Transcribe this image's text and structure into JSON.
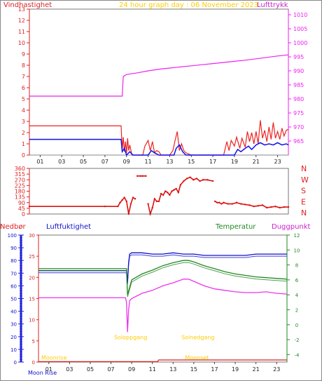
{
  "header": {
    "left_label": "Vindhastighet",
    "title": "24 hour graph day : 06 November 2023",
    "right_label": "Lufttrykk"
  },
  "colors": {
    "wind": "#ee2222",
    "gust": "#ee2222",
    "avg": "#1111ee",
    "pressure": "#ee22ee",
    "direction": "#dd1111",
    "humidity": "#1111cc",
    "temperature": "#228822",
    "dewpoint": "#ee33ee",
    "rain": "#dd2222",
    "sun": "#ffcc00",
    "axis_left": "#dd2222",
    "axis_right": "#ee22ee"
  },
  "chart_data": [
    {
      "type": "line",
      "name_key": "wind-pressure",
      "x_ticks": [
        "01",
        "03",
        "05",
        "07",
        "09",
        "11",
        "13",
        "15",
        "17",
        "19",
        "21",
        "23"
      ],
      "xlim": [
        0,
        24
      ],
      "left_axis": {
        "ylim": [
          0,
          13
        ],
        "ticks": [
          "0",
          "1",
          "2",
          "3",
          "4",
          "5",
          "6",
          "7",
          "8",
          "9",
          "10",
          "11",
          "12",
          "13"
        ]
      },
      "right_axis": {
        "ylim": [
          960,
          1012
        ],
        "ticks": [
          "965",
          "970",
          "975",
          "980",
          "985",
          "990",
          "995",
          "1000",
          "1005",
          "1010"
        ]
      },
      "series": [
        {
          "role": "pressure",
          "axis": "right",
          "x": [
            0,
            8.6,
            8.7,
            9,
            10,
            11,
            12,
            13,
            14,
            15,
            16,
            17,
            18,
            19,
            20,
            21,
            22,
            23,
            24
          ],
          "y": [
            981,
            981,
            988,
            988.7,
            989.3,
            990,
            990.6,
            991,
            991.4,
            991.8,
            992.2,
            992.6,
            993,
            993.4,
            993.8,
            994.3,
            994.8,
            995.3,
            995.7
          ]
        },
        {
          "role": "gust",
          "axis": "left",
          "x": [
            0,
            8.5,
            8.6,
            8.7,
            8.8,
            8.9,
            9.0,
            9.1,
            9.2,
            9.3,
            9.5,
            9.7,
            10,
            10.3,
            10.5,
            10.7,
            11,
            11.2,
            11.4,
            11.6,
            11.8,
            12.0,
            12.2,
            12.5,
            13,
            13.3,
            13.5,
            13.7,
            13.9,
            14.1,
            14.3,
            14.5,
            15,
            15.5,
            16,
            16.5,
            17,
            17.5,
            18,
            18.3,
            18.5,
            18.7,
            19,
            19.2,
            19.5,
            19.7,
            20,
            20.2,
            20.4,
            20.6,
            20.8,
            21,
            21.2,
            21.4,
            21.6,
            21.8,
            22,
            22.2,
            22.4,
            22.6,
            22.8,
            23,
            23.2,
            23.4,
            23.6,
            23.8,
            24
          ],
          "y": [
            2.6,
            2.6,
            0.5,
            1.6,
            0.3,
            1.2,
            0.2,
            1.5,
            0.4,
            0.9,
            0,
            0,
            0,
            0,
            0,
            0.8,
            1.3,
            0.4,
            1.2,
            0.2,
            0.4,
            0.3,
            0,
            0,
            0,
            0.4,
            1.3,
            2.1,
            0.4,
            1.0,
            0.4,
            0.2,
            0,
            0,
            0,
            0,
            0,
            0,
            0,
            1.2,
            0.4,
            1.3,
            0.8,
            1.6,
            0.6,
            1.5,
            0.7,
            2.1,
            1.2,
            2.0,
            1.0,
            2.1,
            1.0,
            3.1,
            1.5,
            2.2,
            1.2,
            2.5,
            1.4,
            2.9,
            1.5,
            2.1,
            1.4,
            2.4,
            1.7,
            2.2,
            2.3
          ]
        },
        {
          "role": "avg",
          "axis": "left",
          "x": [
            0,
            8.5,
            8.6,
            8.8,
            9.0,
            9.3,
            9.6,
            11,
            11.3,
            11.6,
            12,
            13.4,
            13.6,
            13.9,
            14.2,
            14.5,
            19,
            19.3,
            19.6,
            20,
            20.3,
            20.6,
            21,
            21.4,
            21.8,
            22.2,
            22.6,
            23,
            23.4,
            23.8,
            24
          ],
          "y": [
            1.4,
            1.4,
            0.3,
            0.6,
            0,
            0.3,
            0,
            0,
            0.4,
            0.2,
            0,
            0,
            0.6,
            0.9,
            0.3,
            0,
            0,
            0.5,
            0.3,
            0.6,
            0.8,
            0.5,
            0.9,
            1.1,
            0.9,
            1.0,
            0.9,
            1.1,
            0.9,
            1.0,
            0.9
          ]
        }
      ]
    },
    {
      "type": "scatter",
      "name_key": "wind-direction",
      "xlim": [
        0,
        24
      ],
      "ylim": [
        0,
        360
      ],
      "y_ticks": [
        "0",
        "45",
        "90",
        "135",
        "180",
        "225",
        "270",
        "315",
        "360"
      ],
      "compass": [
        "N",
        "W",
        "S",
        "E",
        "N"
      ],
      "series": [
        {
          "role": "direction",
          "x": [
            0,
            7,
            8.2,
            8.4,
            8.6,
            8.8,
            9.0,
            9.2,
            9.4,
            9.6,
            9.8,
            10.0,
            10.3,
            10.5,
            10.8,
            11.0,
            11.2,
            11.4,
            11.6,
            11.8,
            12.0,
            12.2,
            12.4,
            12.6,
            12.8,
            13.0,
            13.2,
            13.4,
            13.6,
            13.8,
            14.0,
            14.3,
            14.6,
            14.9,
            15.2,
            15.5,
            15.8,
            16.1,
            16.5,
            17.0,
            17.2,
            17.4,
            17.6,
            17.8,
            18.0,
            18.4,
            18.8,
            19.2,
            19.6,
            20.0,
            20.4,
            20.8,
            21.2,
            21.6,
            22.0,
            22.4,
            22.8,
            23.2,
            23.6,
            24
          ],
          "y": [
            60,
            60,
            60,
            90,
            110,
            130,
            100,
            0,
            80,
            130,
            120,
            300,
            300,
            300,
            300,
            80,
            0,
            50,
            120,
            100,
            100,
            160,
            150,
            180,
            170,
            150,
            180,
            190,
            200,
            170,
            230,
            260,
            280,
            290,
            270,
            280,
            260,
            270,
            270,
            260,
            100,
            90,
            90,
            80,
            90,
            80,
            80,
            90,
            80,
            75,
            70,
            60,
            65,
            70,
            50,
            55,
            60,
            50,
            55,
            55
          ]
        }
      ]
    },
    {
      "type": "line",
      "name_key": "climate",
      "xlim": [
        0,
        24
      ],
      "x_ticks": [
        "01",
        "03",
        "05",
        "07",
        "09",
        "11",
        "13",
        "15",
        "17",
        "19",
        "21",
        "23"
      ],
      "left_labels": {
        "rain": "Nedbør",
        "humidity": "Luftfuktighet"
      },
      "right_labels": {
        "temperature": "Temperatur",
        "dewpoint": "Duggpunkt"
      },
      "humidity_axis": {
        "ylim": [
          0,
          100
        ],
        "ticks": [
          "0",
          "10",
          "20",
          "30",
          "40",
          "50",
          "60",
          "70",
          "80",
          "90",
          "100"
        ]
      },
      "rain_axis": {
        "ylim": [
          0,
          30
        ],
        "ticks": [
          "0",
          "5",
          "10",
          "15",
          "20",
          "25",
          "30"
        ]
      },
      "temp_axis": {
        "ylim": [
          -5,
          12
        ],
        "ticks": [
          "-4",
          "-2",
          "0",
          "2",
          "4",
          "6",
          "8",
          "10",
          "12"
        ]
      },
      "series": [
        {
          "role": "humidity",
          "axis": "humidity",
          "x": [
            0,
            8.5,
            8.6,
            8.7,
            8.8,
            9,
            10,
            11,
            12,
            13,
            14,
            15,
            16,
            17,
            18,
            19,
            20,
            21,
            22,
            23,
            24
          ],
          "y": [
            72,
            72,
            63,
            78,
            85,
            86,
            86,
            85,
            85,
            86,
            85,
            85,
            84,
            84,
            84,
            84,
            84,
            85,
            85,
            85,
            85
          ]
        },
        {
          "role": "temperature",
          "axis": "temp",
          "x": [
            0,
            8.5,
            8.6,
            8.8,
            9,
            10,
            11,
            12,
            13,
            14,
            14.5,
            15,
            16,
            17,
            18,
            19,
            20,
            21,
            22,
            23,
            24
          ],
          "y": [
            7.5,
            7.5,
            4.0,
            5.0,
            6.0,
            6.8,
            7.3,
            7.9,
            8.3,
            8.6,
            8.6,
            8.4,
            7.9,
            7.5,
            7.1,
            6.8,
            6.6,
            6.4,
            6.3,
            6.2,
            6.1
          ]
        },
        {
          "role": "dewpoint",
          "axis": "temp",
          "x": [
            0,
            8.4,
            8.5,
            8.6,
            8.7,
            8.8,
            9,
            10,
            11,
            12,
            13,
            14,
            14.5,
            15,
            16,
            17,
            18,
            19,
            20,
            21,
            22,
            23,
            24
          ],
          "y": [
            3.6,
            3.6,
            3.0,
            -1.0,
            2.0,
            3.2,
            3.5,
            4.2,
            4.6,
            5.2,
            5.6,
            6.1,
            6.1,
            5.8,
            5.2,
            4.8,
            4.6,
            4.4,
            4.3,
            4.3,
            4.4,
            4.2,
            4.1
          ]
        },
        {
          "role": "rain",
          "axis": "rain",
          "x": [
            0,
            11.5,
            11.6,
            24
          ],
          "y": [
            0.1,
            0.1,
            0.5,
            0.5
          ]
        }
      ],
      "events": [
        {
          "label": "Soloppgang",
          "x": 8.9,
          "y_frac": 0.82
        },
        {
          "label": "Solnedgang",
          "x": 15.4,
          "y_frac": 0.82
        },
        {
          "label": "Moonrise",
          "x": 1.5,
          "y_frac": 0.98
        },
        {
          "label": "Moonset",
          "x": 15.3,
          "y_frac": 0.98
        }
      ],
      "moon_label": "Moon Rise"
    }
  ]
}
